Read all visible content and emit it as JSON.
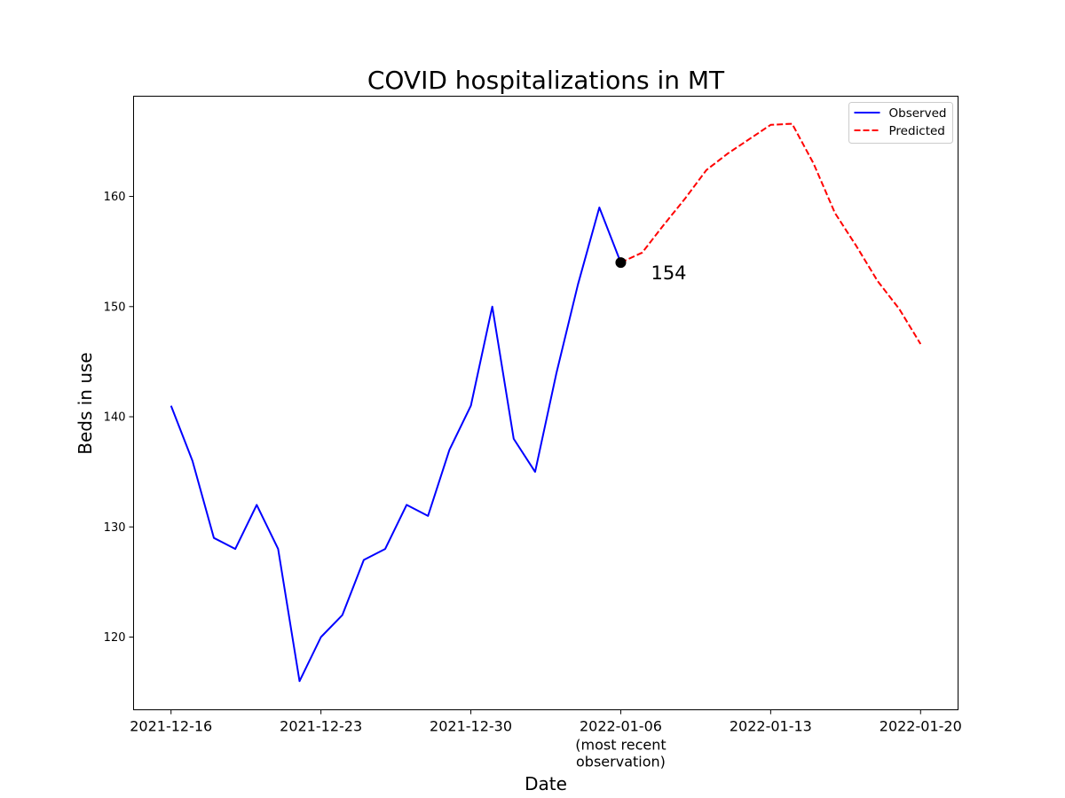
{
  "chart_data": {
    "type": "line",
    "title": "COVID hospitalizations in MT",
    "xlabel": "Date",
    "ylabel": "Beds in use",
    "x_ticks": [
      {
        "date": "2021-12-16",
        "label": "2021-12-16",
        "sublabel": ""
      },
      {
        "date": "2021-12-23",
        "label": "2021-12-23",
        "sublabel": ""
      },
      {
        "date": "2021-12-30",
        "label": "2021-12-30",
        "sublabel": ""
      },
      {
        "date": "2022-01-06",
        "label": "2022-01-06",
        "sublabel": "(most recent\nobservation)"
      },
      {
        "date": "2022-01-13",
        "label": "2022-01-13",
        "sublabel": ""
      },
      {
        "date": "2022-01-20",
        "label": "2022-01-20",
        "sublabel": ""
      }
    ],
    "y_ticks": [
      120,
      130,
      140,
      150,
      160
    ],
    "xlim": [
      "2021-12-14.25",
      "2022-01-21.75"
    ],
    "ylim": [
      113.4,
      169.1
    ],
    "grid": false,
    "legend_position": "upper right",
    "series": [
      {
        "name": "Observed",
        "color": "#0000ff",
        "style": "solid",
        "points": [
          {
            "x": "2021-12-16",
            "y": 141
          },
          {
            "x": "2021-12-17",
            "y": 136
          },
          {
            "x": "2021-12-18",
            "y": 129
          },
          {
            "x": "2021-12-19",
            "y": 128
          },
          {
            "x": "2021-12-20",
            "y": 132
          },
          {
            "x": "2021-12-21",
            "y": 128
          },
          {
            "x": "2021-12-22",
            "y": 116
          },
          {
            "x": "2021-12-23",
            "y": 120
          },
          {
            "x": "2021-12-24",
            "y": 122
          },
          {
            "x": "2021-12-25",
            "y": 127
          },
          {
            "x": "2021-12-26",
            "y": 128
          },
          {
            "x": "2021-12-27",
            "y": 132
          },
          {
            "x": "2021-12-28",
            "y": 131
          },
          {
            "x": "2021-12-29",
            "y": 137
          },
          {
            "x": "2021-12-30",
            "y": 141
          },
          {
            "x": "2021-12-31",
            "y": 150
          },
          {
            "x": "2022-01-01",
            "y": 138
          },
          {
            "x": "2022-01-02",
            "y": 135
          },
          {
            "x": "2022-01-03",
            "y": 144
          },
          {
            "x": "2022-01-04",
            "y": 152
          },
          {
            "x": "2022-01-05",
            "y": 159
          },
          {
            "x": "2022-01-06",
            "y": 154
          }
        ]
      },
      {
        "name": "Predicted",
        "color": "#ff0000",
        "style": "dashed",
        "points": [
          {
            "x": "2022-01-06",
            "y": 154
          },
          {
            "x": "2022-01-07",
            "y": 154.9
          },
          {
            "x": "2022-01-08",
            "y": 157.4
          },
          {
            "x": "2022-01-09",
            "y": 159.8
          },
          {
            "x": "2022-01-10",
            "y": 162.4
          },
          {
            "x": "2022-01-11",
            "y": 163.9
          },
          {
            "x": "2022-01-12",
            "y": 165.2
          },
          {
            "x": "2022-01-13",
            "y": 166.5
          },
          {
            "x": "2022-01-14",
            "y": 166.6
          },
          {
            "x": "2022-01-15",
            "y": 163.0
          },
          {
            "x": "2022-01-16",
            "y": 158.5
          },
          {
            "x": "2022-01-17",
            "y": 155.5
          },
          {
            "x": "2022-01-18",
            "y": 152.3
          },
          {
            "x": "2022-01-19",
            "y": 149.8
          },
          {
            "x": "2022-01-20",
            "y": 146.6
          }
        ]
      }
    ],
    "highlight": {
      "x": "2022-01-06",
      "y": 154,
      "label": "154",
      "color": "#000000"
    }
  }
}
